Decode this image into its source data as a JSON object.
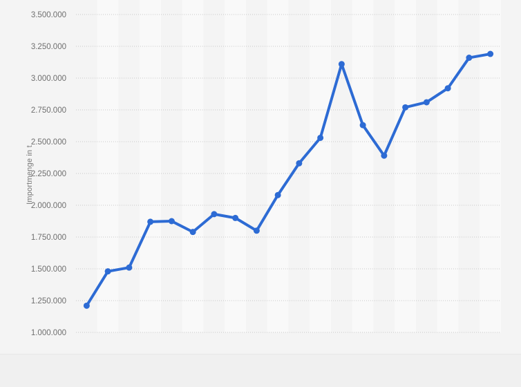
{
  "chart_data": {
    "type": "line",
    "title": "",
    "xlabel": "",
    "ylabel": "Importmenge in t",
    "x_tick_labels_visible": false,
    "ytick_labels": [
      "3.500.000",
      "3.250.000",
      "3.000.000",
      "2.750.000",
      "2.500.000",
      "2.250.000",
      "2.000.000",
      "1.750.000",
      "1.500.000",
      "1.250.000",
      "1.000.000"
    ],
    "ylim": [
      1000000,
      3500000
    ],
    "ytick_step": 250000,
    "grid": "horizontal-dotted",
    "legend_position": "none",
    "plot_background_stripes": "alternating-vertical-columns",
    "series": [
      {
        "name": "Importmenge in t",
        "color": "#2d6bd4",
        "marker": "circle",
        "values": [
          1210000,
          1480000,
          1510000,
          1870000,
          1875000,
          1790000,
          1930000,
          1900000,
          1800000,
          2080000,
          2330000,
          2530000,
          3110000,
          2630000,
          2390000,
          2770000,
          2810000,
          2920000,
          3160000,
          3190000
        ]
      }
    ]
  },
  "colors": {
    "page_background": "#f1f1f1",
    "plot_background": "#f4f4f4",
    "column_stripe": "#f9f9f9",
    "footer_background": "#f0f0f0",
    "gridline": "#c9c9c9",
    "axis_text": "#6e6e6e",
    "line": "#2d6bd4"
  }
}
